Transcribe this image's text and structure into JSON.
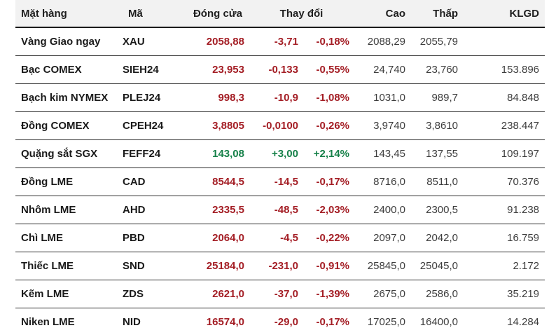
{
  "table": {
    "headers": {
      "commodity": "Mặt hàng",
      "code": "Mã",
      "close": "Đóng cửa",
      "change": "Thay đổi",
      "high": "Cao",
      "low": "Thấp",
      "volume": "KLGD"
    },
    "colors": {
      "down": "#a41e25",
      "up": "#168149",
      "header_bg": "#f2f2f2",
      "row_text": "#1a1a1a",
      "muted_number": "#3d3d3d"
    },
    "rows": [
      {
        "commodity": "Vàng Giao ngay",
        "code": "XAU",
        "close": "2058,88",
        "change": "-3,71",
        "change_pct": "-0,18%",
        "high": "2088,29",
        "low": "2055,79",
        "volume": "",
        "direction": "down"
      },
      {
        "commodity": "Bạc COMEX",
        "code": "SIEH24",
        "close": "23,953",
        "change": "-0,133",
        "change_pct": "-0,55%",
        "high": "24,740",
        "low": "23,760",
        "volume": "153.896",
        "direction": "down"
      },
      {
        "commodity": "Bạch kim NYMEX",
        "code": "PLEJ24",
        "close": "998,3",
        "change": "-10,9",
        "change_pct": "-1,08%",
        "high": "1031,0",
        "low": "989,7",
        "volume": "84.848",
        "direction": "down"
      },
      {
        "commodity": "Đồng COMEX",
        "code": "CPEH24",
        "close": "3,8805",
        "change": "-0,0100",
        "change_pct": "-0,26%",
        "high": "3,9740",
        "low": "3,8610",
        "volume": "238.447",
        "direction": "down"
      },
      {
        "commodity": "Quặng sắt SGX",
        "code": "FEFF24",
        "close": "143,08",
        "change": "+3,00",
        "change_pct": "+2,14%",
        "high": "143,45",
        "low": "137,55",
        "volume": "109.197",
        "direction": "up"
      },
      {
        "commodity": "Đồng LME",
        "code": "CAD",
        "close": "8544,5",
        "change": "-14,5",
        "change_pct": "-0,17%",
        "high": "8716,0",
        "low": "8511,0",
        "volume": "70.376",
        "direction": "down"
      },
      {
        "commodity": "Nhôm LME",
        "code": "AHD",
        "close": "2335,5",
        "change": "-48,5",
        "change_pct": "-2,03%",
        "high": "2400,0",
        "low": "2300,5",
        "volume": "91.238",
        "direction": "down"
      },
      {
        "commodity": "Chì LME",
        "code": "PBD",
        "close": "2064,0",
        "change": "-4,5",
        "change_pct": "-0,22%",
        "high": "2097,0",
        "low": "2042,0",
        "volume": "16.759",
        "direction": "down"
      },
      {
        "commodity": "Thiếc LME",
        "code": "SND",
        "close": "25184,0",
        "change": "-231,0",
        "change_pct": "-0,91%",
        "high": "25845,0",
        "low": "25045,0",
        "volume": "2.172",
        "direction": "down"
      },
      {
        "commodity": "Kẽm LME",
        "code": "ZDS",
        "close": "2621,0",
        "change": "-37,0",
        "change_pct": "-1,39%",
        "high": "2675,0",
        "low": "2586,0",
        "volume": "35.219",
        "direction": "down"
      },
      {
        "commodity": "Niken LME",
        "code": "NID",
        "close": "16574,0",
        "change": "-29,0",
        "change_pct": "-0,17%",
        "high": "17025,0",
        "low": "16400,0",
        "volume": "14.284",
        "direction": "down"
      }
    ]
  }
}
